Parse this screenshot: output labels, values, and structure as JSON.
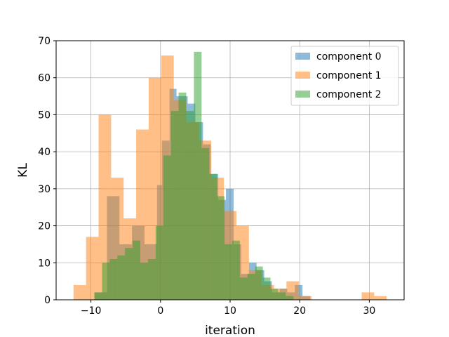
{
  "chart_data": {
    "type": "bar",
    "subtype": "overlapping-histogram",
    "xlabel": "iteration",
    "ylabel": "KL",
    "xlim": [
      -15,
      35
    ],
    "ylim": [
      0,
      70
    ],
    "xticks": [
      -10,
      0,
      10,
      20,
      30
    ],
    "yticks": [
      0,
      10,
      20,
      30,
      40,
      50,
      60,
      70
    ],
    "grid": true,
    "legend_position": "top-right",
    "bar_alpha": 0.5,
    "series": [
      {
        "name": "component 0",
        "color": "#1f77b4",
        "bins": [
          {
            "x0": -9.5,
            "x1": -7.7,
            "y": 2
          },
          {
            "x0": -7.7,
            "x1": -5.9,
            "y": 28
          },
          {
            "x0": -5.9,
            "x1": -4.1,
            "y": 15
          },
          {
            "x0": -4.1,
            "x1": -2.3,
            "y": 20
          },
          {
            "x0": -2.3,
            "x1": -0.5,
            "y": 15
          },
          {
            "x0": -0.5,
            "x1": 0.2,
            "y": 31
          },
          {
            "x0": 0.2,
            "x1": 1.3,
            "y": 43
          },
          {
            "x0": 1.3,
            "x1": 2.3,
            "y": 57
          },
          {
            "x0": 2.3,
            "x1": 3.9,
            "y": 55
          },
          {
            "x0": 3.9,
            "x1": 5.0,
            "y": 53
          },
          {
            "x0": 5.0,
            "x1": 6.1,
            "y": 48
          },
          {
            "x0": 6.1,
            "x1": 7.2,
            "y": 42
          },
          {
            "x0": 7.2,
            "x1": 8.3,
            "y": 34
          },
          {
            "x0": 8.3,
            "x1": 9.4,
            "y": 27
          },
          {
            "x0": 9.4,
            "x1": 10.5,
            "y": 30
          },
          {
            "x0": 10.5,
            "x1": 11.6,
            "y": 15
          },
          {
            "x0": 11.6,
            "x1": 12.7,
            "y": 7
          },
          {
            "x0": 12.7,
            "x1": 13.8,
            "y": 10
          },
          {
            "x0": 13.8,
            "x1": 14.9,
            "y": 8
          },
          {
            "x0": 14.9,
            "x1": 16.0,
            "y": 5
          },
          {
            "x0": 16.0,
            "x1": 17.1,
            "y": 2
          },
          {
            "x0": 17.1,
            "x1": 18.2,
            "y": 3
          },
          {
            "x0": 18.2,
            "x1": 19.3,
            "y": 2
          },
          {
            "x0": 19.3,
            "x1": 20.4,
            "y": 4
          },
          {
            "x0": 20.4,
            "x1": 21.5,
            "y": 1
          }
        ]
      },
      {
        "name": "component 1",
        "color": "#ff7f0e",
        "bins": [
          {
            "x0": -12.5,
            "x1": -10.7,
            "y": 4
          },
          {
            "x0": -10.7,
            "x1": -8.9,
            "y": 17
          },
          {
            "x0": -8.9,
            "x1": -7.1,
            "y": 50
          },
          {
            "x0": -7.1,
            "x1": -5.3,
            "y": 33
          },
          {
            "x0": -5.3,
            "x1": -3.5,
            "y": 22
          },
          {
            "x0": -3.5,
            "x1": -1.7,
            "y": 46
          },
          {
            "x0": -1.7,
            "x1": 0.1,
            "y": 60
          },
          {
            "x0": 0.1,
            "x1": 1.9,
            "y": 66
          },
          {
            "x0": 1.9,
            "x1": 3.7,
            "y": 54
          },
          {
            "x0": 3.7,
            "x1": 5.5,
            "y": 48
          },
          {
            "x0": 5.5,
            "x1": 7.3,
            "y": 43
          },
          {
            "x0": 7.3,
            "x1": 9.1,
            "y": 33
          },
          {
            "x0": 9.1,
            "x1": 10.9,
            "y": 24
          },
          {
            "x0": 10.9,
            "x1": 12.7,
            "y": 20
          },
          {
            "x0": 12.7,
            "x1": 14.5,
            "y": 8
          },
          {
            "x0": 14.5,
            "x1": 16.3,
            "y": 4
          },
          {
            "x0": 16.3,
            "x1": 18.1,
            "y": 3
          },
          {
            "x0": 18.1,
            "x1": 19.9,
            "y": 5
          },
          {
            "x0": 19.9,
            "x1": 21.7,
            "y": 1
          },
          {
            "x0": 28.9,
            "x1": 30.7,
            "y": 2
          },
          {
            "x0": 30.7,
            "x1": 32.5,
            "y": 1
          }
        ]
      },
      {
        "name": "component 2",
        "color": "#2ca02c",
        "bins": [
          {
            "x0": -9.5,
            "x1": -8.4,
            "y": 2
          },
          {
            "x0": -8.4,
            "x1": -7.3,
            "y": 10
          },
          {
            "x0": -7.3,
            "x1": -6.2,
            "y": 11
          },
          {
            "x0": -6.2,
            "x1": -5.1,
            "y": 12
          },
          {
            "x0": -5.1,
            "x1": -4.0,
            "y": 14
          },
          {
            "x0": -4.0,
            "x1": -2.9,
            "y": 16
          },
          {
            "x0": -2.9,
            "x1": -1.8,
            "y": 10
          },
          {
            "x0": -1.8,
            "x1": -0.7,
            "y": 11
          },
          {
            "x0": -0.7,
            "x1": 0.4,
            "y": 20
          },
          {
            "x0": 0.4,
            "x1": 1.5,
            "y": 39
          },
          {
            "x0": 1.5,
            "x1": 2.6,
            "y": 51
          },
          {
            "x0": 2.6,
            "x1": 3.7,
            "y": 56
          },
          {
            "x0": 3.7,
            "x1": 4.8,
            "y": 51
          },
          {
            "x0": 4.8,
            "x1": 5.9,
            "y": 67
          },
          {
            "x0": 5.9,
            "x1": 7.0,
            "y": 41
          },
          {
            "x0": 7.0,
            "x1": 8.1,
            "y": 34
          },
          {
            "x0": 8.1,
            "x1": 9.2,
            "y": 28
          },
          {
            "x0": 9.2,
            "x1": 10.3,
            "y": 15
          },
          {
            "x0": 10.3,
            "x1": 11.4,
            "y": 16
          },
          {
            "x0": 11.4,
            "x1": 12.5,
            "y": 6
          },
          {
            "x0": 12.5,
            "x1": 13.6,
            "y": 7
          },
          {
            "x0": 13.6,
            "x1": 14.7,
            "y": 9
          },
          {
            "x0": 14.7,
            "x1": 15.8,
            "y": 6
          },
          {
            "x0": 15.8,
            "x1": 16.9,
            "y": 3
          },
          {
            "x0": 16.9,
            "x1": 18.0,
            "y": 2
          },
          {
            "x0": 18.0,
            "x1": 19.1,
            "y": 1
          }
        ]
      }
    ]
  }
}
